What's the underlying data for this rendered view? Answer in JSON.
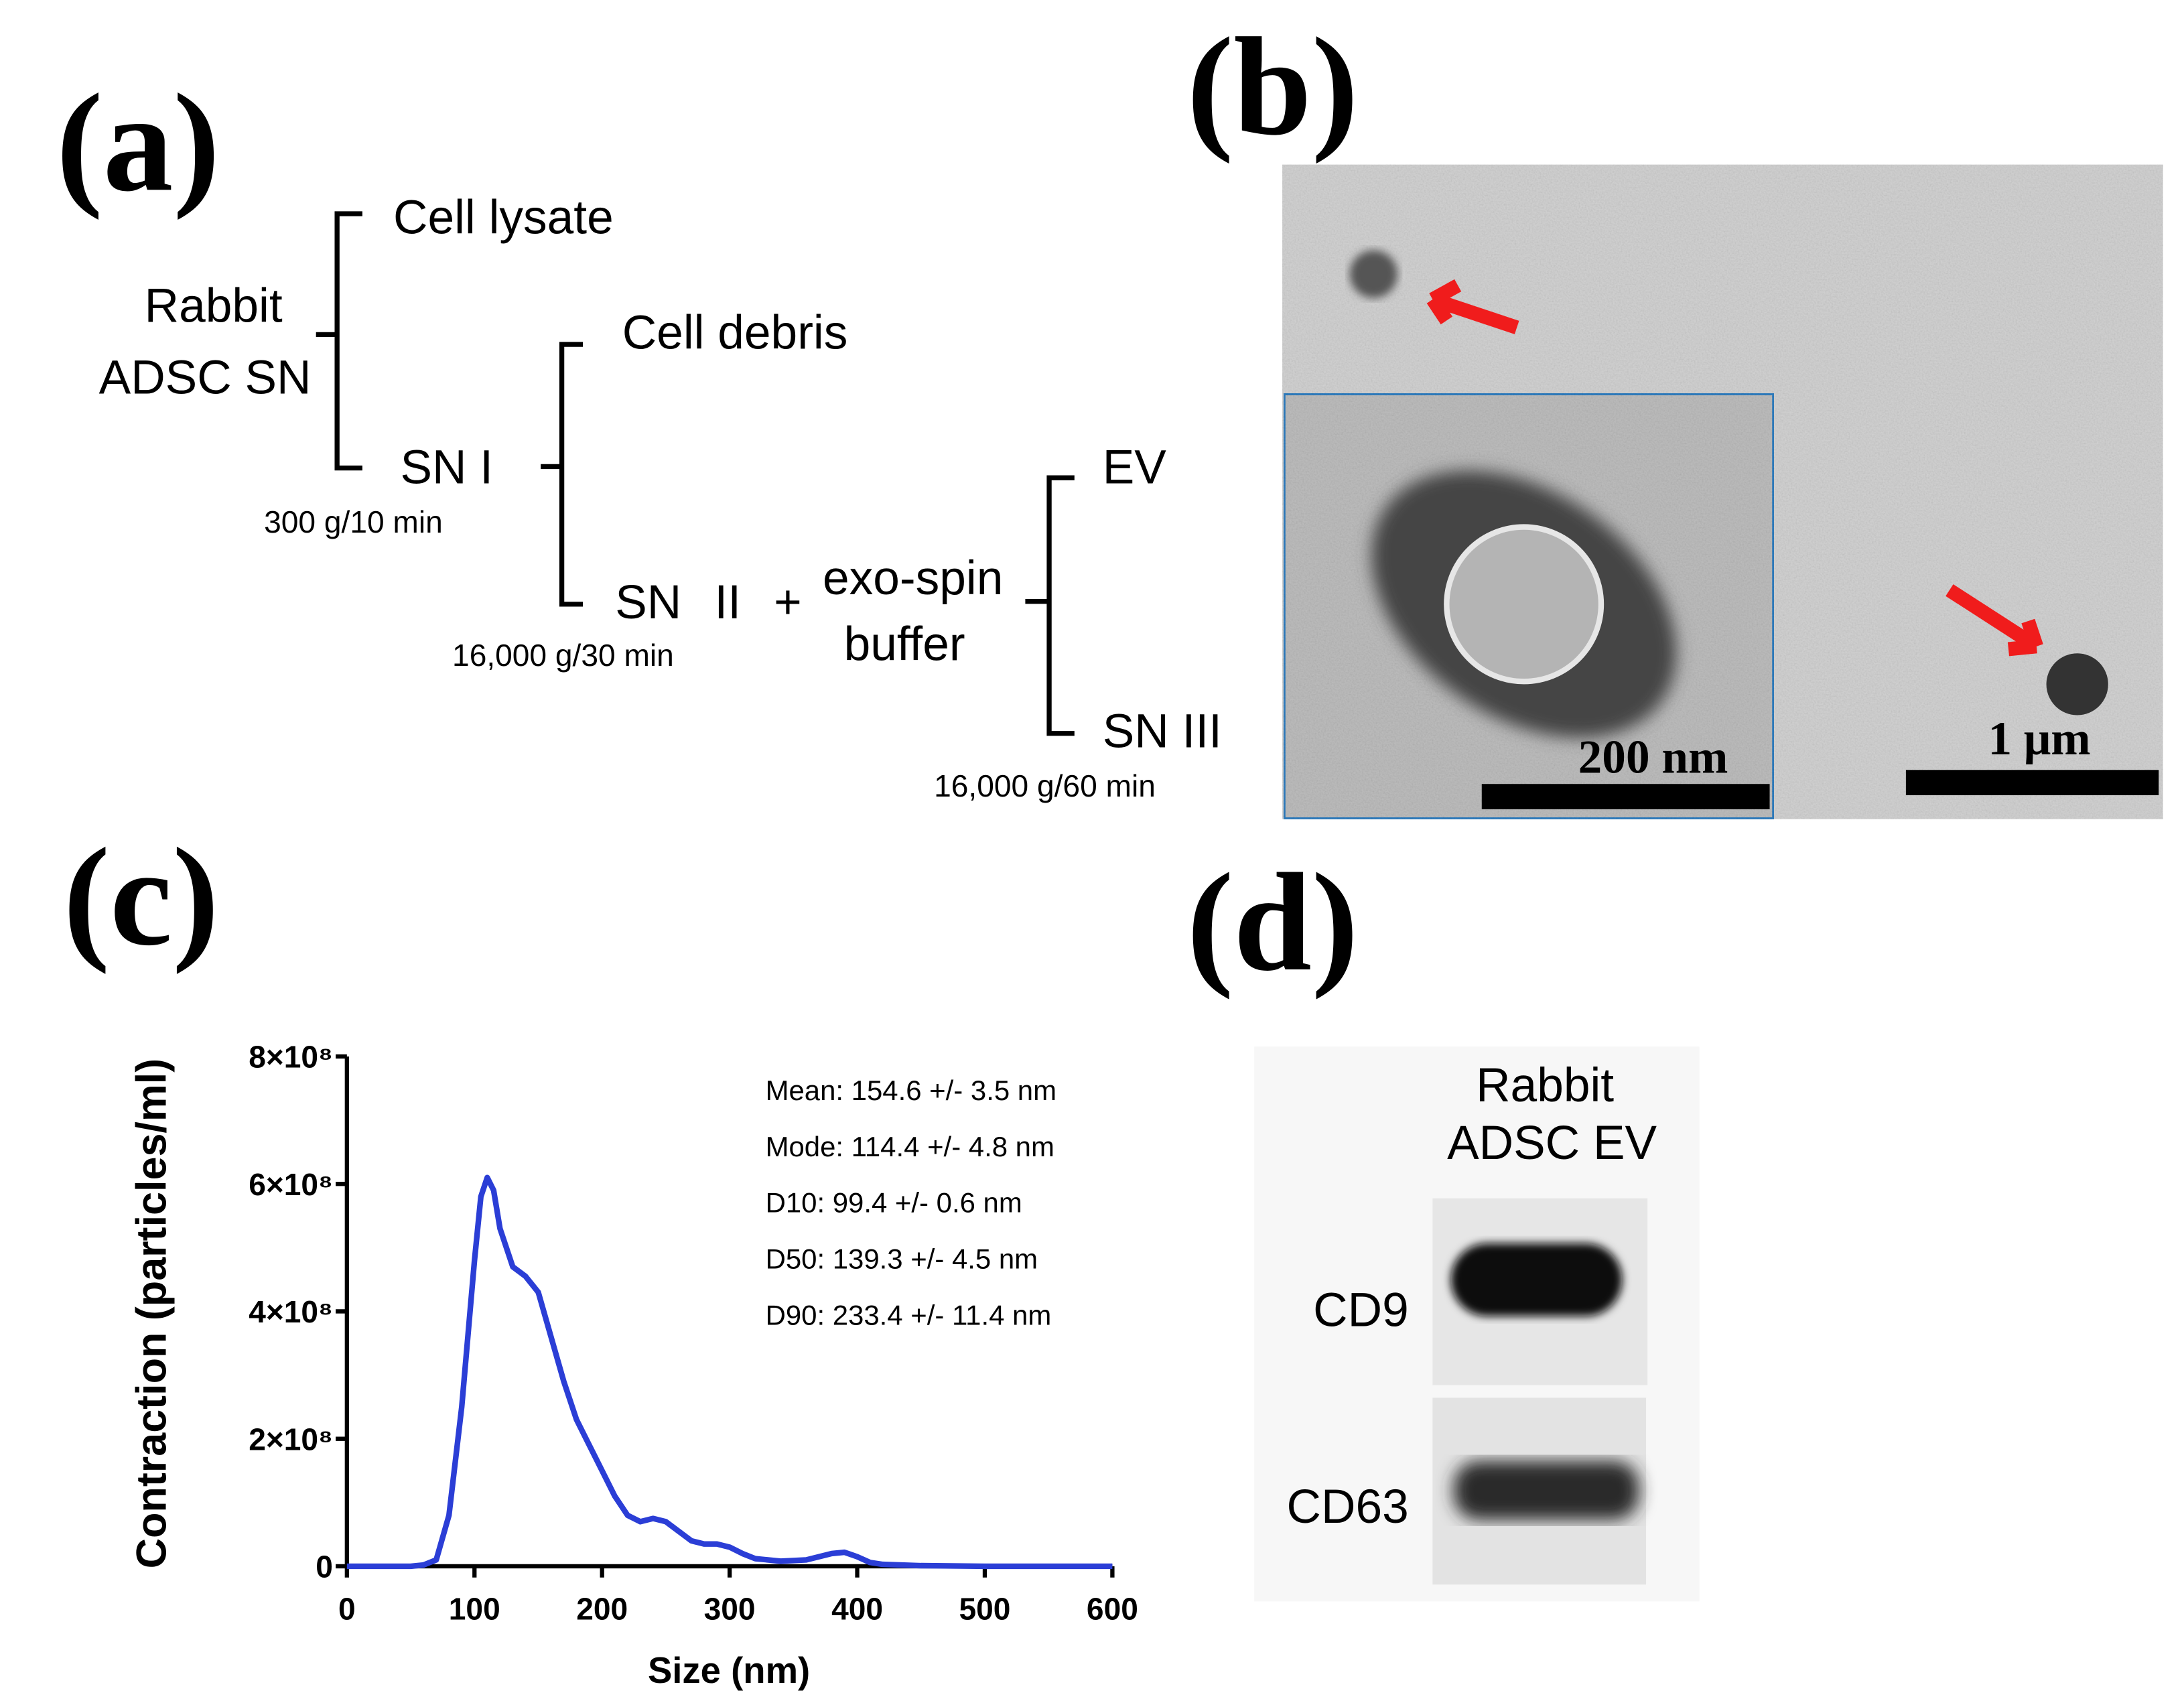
{
  "panel_labels": [
    "(a)",
    "(b)",
    "(c)",
    "(d)"
  ],
  "flowchart": {
    "nodes": [
      [
        "Rabbit",
        "ADSC SN"
      ],
      [
        "Cell lysate"
      ],
      [
        "SN I"
      ],
      [
        "Cell debris"
      ],
      [
        "SN II +"
      ],
      [
        "exo-spin",
        "buffer"
      ],
      [
        "EV"
      ],
      [
        "SN III"
      ]
    ],
    "conditions": [
      "300 g/10 min",
      "16,000 g/30 min",
      "16,000 g/60 min"
    ]
  },
  "tem": {
    "scale_bars": [
      "200 nm",
      "1 μm"
    ]
  },
  "chart_data": {
    "type": "line",
    "xlabel": "Size (nm)",
    "ylabel": "Contraction (particles/ml)",
    "x": [
      0,
      50,
      60,
      70,
      80,
      90,
      100,
      105,
      110,
      115,
      120,
      130,
      140,
      150,
      160,
      170,
      180,
      190,
      200,
      210,
      220,
      230,
      240,
      250,
      260,
      270,
      280,
      290,
      300,
      310,
      320,
      340,
      360,
      380,
      390,
      400,
      410,
      420,
      450,
      500,
      600
    ],
    "values": [
      0,
      0,
      2000000,
      10000000,
      80000000,
      250000000,
      480000000,
      580000000,
      610000000,
      590000000,
      530000000,
      470000000,
      455000000,
      430000000,
      360000000,
      290000000,
      230000000,
      190000000,
      150000000,
      110000000,
      80000000,
      70000000,
      75000000,
      70000000,
      55000000,
      40000000,
      35000000,
      35000000,
      30000000,
      20000000,
      12000000,
      8000000,
      10000000,
      20000000,
      22000000,
      15000000,
      6000000,
      3000000,
      1000000,
      0,
      0
    ],
    "color": "#2b3ed6",
    "xlim": [
      0,
      600
    ],
    "xticks": [
      0,
      100,
      200,
      300,
      400,
      500,
      600
    ],
    "ylim": [
      0,
      800000000
    ],
    "yticks": [
      0,
      {
        "value": 200000000,
        "label": "2×10⁸"
      },
      {
        "value": 400000000,
        "label": "4×10⁸"
      },
      {
        "value": 600000000,
        "label": "6×10⁸"
      },
      {
        "value": 800000000,
        "label": "8×10⁸"
      }
    ],
    "annotations": [
      "Mean: 154.6 +/- 3.5 nm",
      "Mode: 114.4 +/- 4.8 nm",
      "D10: 99.4 +/- 0.6 nm",
      "D50: 139.3 +/- 4.5 nm",
      "D90: 233.4 +/- 11.4 nm"
    ]
  },
  "blot": {
    "sample": [
      "Rabbit",
      "ADSC EV"
    ],
    "markers": [
      "CD9",
      "CD63"
    ]
  }
}
